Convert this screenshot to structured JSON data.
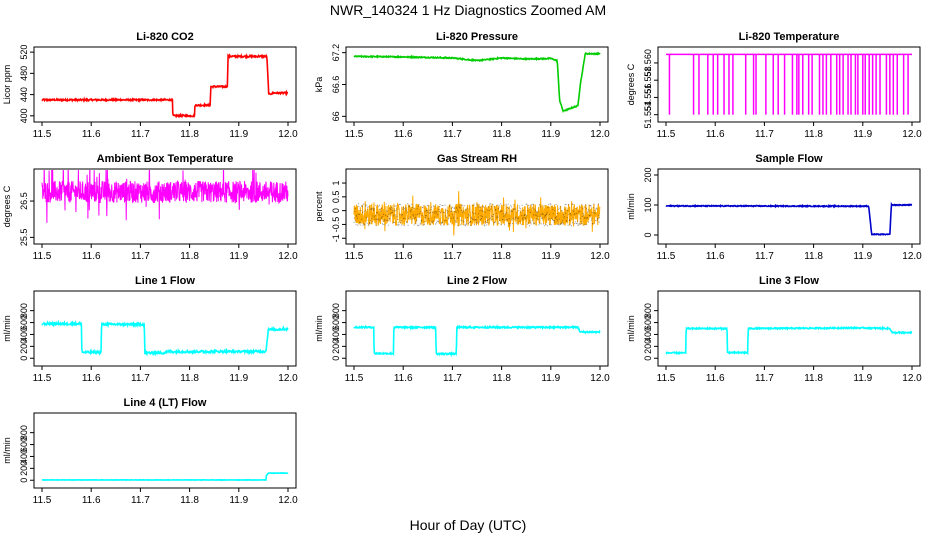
{
  "figure": {
    "title": "NWR_140324  1 Hz Diagnostics Zoomed AM",
    "xlabel": "Hour of Day (UTC)"
  },
  "chart_data": [
    {
      "type": "line",
      "title": "Li-820 CO2",
      "ylabel": "Licor ppm",
      "color": "#ff0000",
      "xlim": [
        11.5,
        12.0
      ],
      "x_ticks": [
        "11.5",
        "11.6",
        "11.7",
        "11.8",
        "11.9",
        "12.0"
      ],
      "ylim": [
        394,
        524
      ],
      "y_ticks": [
        400,
        440,
        480,
        520
      ],
      "noise": 1.5,
      "series": [
        {
          "x": [
            11.5,
            11.765,
            11.766,
            11.81,
            11.811,
            11.842,
            11.843,
            11.877,
            11.878,
            11.957,
            11.961,
            11.97,
            12.0
          ],
          "y": [
            430,
            430,
            400,
            400,
            420,
            420,
            455,
            455,
            512,
            512,
            440,
            443,
            443
          ]
        }
      ]
    },
    {
      "type": "line",
      "title": "Li-820 Pressure",
      "ylabel": "kPa",
      "color": "#00cc00",
      "xlim": [
        11.5,
        12.0
      ],
      "x_ticks": [
        "11.5",
        "11.6",
        "11.7",
        "11.8",
        "11.9",
        "12.0"
      ],
      "ylim": [
        65.95,
        67.25
      ],
      "y_ticks": [
        66.0,
        66.6,
        67.2
      ],
      "noise": 0.01,
      "series": [
        {
          "x": [
            11.5,
            11.6,
            11.7,
            11.75,
            11.8,
            11.85,
            11.9,
            11.913,
            11.918,
            11.925,
            11.955,
            11.96,
            11.97,
            12.0
          ],
          "y": [
            67.13,
            67.12,
            67.1,
            67.05,
            67.1,
            67.08,
            67.09,
            67.05,
            66.3,
            66.1,
            66.2,
            66.6,
            67.18,
            67.18
          ]
        }
      ]
    },
    {
      "type": "line",
      "title": "Li-820 Temperature",
      "ylabel": "degrees C",
      "color": "#ff00ff",
      "xlim": [
        11.5,
        12.0
      ],
      "x_ticks": [
        "11.5",
        "11.6",
        "11.7",
        "11.8",
        "11.9",
        "12.0"
      ],
      "ylim": [
        51.5535,
        51.5615
      ],
      "y_ticks": [
        51.554,
        51.556,
        51.558,
        51.56
      ],
      "y_tick_labels": [
        "51.554",
        "51.556",
        "51.558",
        "51.560"
      ],
      "spikes": {
        "base": 51.561,
        "low": 51.554,
        "at": [
          11.507,
          11.556,
          11.567,
          11.585,
          11.596,
          11.605,
          11.618,
          11.628,
          11.636,
          11.662,
          11.678,
          11.683,
          11.703,
          11.718,
          11.728,
          11.741,
          11.757,
          11.766,
          11.77,
          11.778,
          11.79,
          11.797,
          11.812,
          11.819,
          11.826,
          11.835,
          11.847,
          11.853,
          11.86,
          11.87,
          11.876,
          11.885,
          11.89,
          11.9,
          11.905,
          11.913,
          11.92,
          11.927,
          11.935,
          11.948,
          11.955,
          11.962,
          11.97,
          11.983,
          11.992
        ]
      }
    },
    {
      "type": "line",
      "title": "Ambient Box Temperature",
      "ylabel": "degrees C",
      "color": "#ff00ff",
      "xlim": [
        11.5,
        12.0
      ],
      "x_ticks": [
        "11.5",
        "11.6",
        "11.7",
        "11.8",
        "11.9",
        "12.0"
      ],
      "ylim": [
        25.4,
        27.3
      ],
      "y_ticks": [
        25.5,
        26.5
      ],
      "noise_series": {
        "mean": 26.75,
        "spread": 0.3,
        "dips": 0.9
      }
    },
    {
      "type": "line",
      "title": "Gas Stream RH",
      "ylabel": "percent",
      "color": "#ffaa00",
      "xlim": [
        11.5,
        12.0
      ],
      "x_ticks": [
        "11.5",
        "11.6",
        "11.7",
        "11.8",
        "11.9",
        "12.0"
      ],
      "ylim": [
        -1.1,
        1.4
      ],
      "y_ticks": [
        -1.0,
        -0.5,
        0.0,
        0.5,
        1.0
      ],
      "noise_series": {
        "mean": -0.15,
        "spread": 0.4,
        "dips": 0.6
      }
    },
    {
      "type": "line",
      "title": "Sample Flow",
      "ylabel": "ml/min",
      "color": "#0000cc",
      "xlim": [
        11.5,
        12.0
      ],
      "x_ticks": [
        "11.5",
        "11.6",
        "11.7",
        "11.8",
        "11.9",
        "12.0"
      ],
      "ylim": [
        -20,
        210
      ],
      "y_ticks": [
        0,
        100,
        200
      ],
      "noise": 1.5,
      "series": [
        {
          "x": [
            11.5,
            11.912,
            11.918,
            11.955,
            11.958,
            12.0
          ],
          "y": [
            97,
            96,
            2,
            2,
            100,
            100
          ]
        }
      ]
    },
    {
      "type": "line",
      "title": "Line 1 Flow",
      "ylabel": "ml/min",
      "color": "#00ffff",
      "xlim": [
        11.5,
        12.0
      ],
      "x_ticks": [
        "11.5",
        "11.6",
        "11.7",
        "11.8",
        "11.9",
        "12.0"
      ],
      "ylim": [
        -80,
        1080
      ],
      "y_ticks": [
        0,
        200,
        400,
        600,
        800
      ],
      "noise": 18,
      "series": [
        {
          "x": [
            11.5,
            11.58,
            11.581,
            11.62,
            11.621,
            11.708,
            11.709,
            11.75,
            11.751,
            11.955,
            11.96,
            12.0
          ],
          "y": [
            580,
            580,
            100,
            100,
            570,
            570,
            90,
            90,
            110,
            115,
            480,
            490
          ]
        }
      ]
    },
    {
      "type": "line",
      "title": "Line 2 Flow",
      "ylabel": "ml/min",
      "color": "#00ffff",
      "xlim": [
        11.5,
        12.0
      ],
      "x_ticks": [
        "11.5",
        "11.6",
        "11.7",
        "11.8",
        "11.9",
        "12.0"
      ],
      "ylim": [
        -80,
        1080
      ],
      "y_ticks": [
        0,
        200,
        400,
        600,
        800
      ],
      "noise": 12,
      "series": [
        {
          "x": [
            11.5,
            11.54,
            11.541,
            11.58,
            11.581,
            11.666,
            11.667,
            11.708,
            11.709,
            11.955,
            11.96,
            12.0
          ],
          "y": [
            520,
            520,
            80,
            80,
            520,
            520,
            75,
            75,
            520,
            520,
            440,
            440
          ]
        }
      ]
    },
    {
      "type": "line",
      "title": "Line 3 Flow",
      "ylabel": "ml/min",
      "color": "#00ffff",
      "xlim": [
        11.5,
        12.0
      ],
      "x_ticks": [
        "11.5",
        "11.6",
        "11.7",
        "11.8",
        "11.9",
        "12.0"
      ],
      "ylim": [
        -80,
        1080
      ],
      "y_ticks": [
        0,
        200,
        400,
        600,
        800
      ],
      "noise": 10,
      "series": [
        {
          "x": [
            11.5,
            11.54,
            11.541,
            11.624,
            11.625,
            11.666,
            11.667,
            11.9,
            11.955,
            11.96,
            12.0
          ],
          "y": [
            90,
            90,
            500,
            500,
            95,
            95,
            500,
            510,
            500,
            430,
            430
          ]
        }
      ]
    },
    {
      "type": "line",
      "title": "Line 4 (LT) Flow",
      "ylabel": "ml/min",
      "color": "#00ffff",
      "xlim": [
        11.5,
        12.0
      ],
      "x_ticks": [
        "11.5",
        "11.6",
        "11.7",
        "11.8",
        "11.9",
        "12.0"
      ],
      "ylim": [
        -80,
        1080
      ],
      "y_ticks": [
        0,
        200,
        400,
        600,
        800
      ],
      "noise": 3,
      "series": [
        {
          "x": [
            11.5,
            11.955,
            11.956,
            11.96,
            12.0
          ],
          "y": [
            5,
            5,
            80,
            120,
            120
          ]
        }
      ]
    }
  ]
}
